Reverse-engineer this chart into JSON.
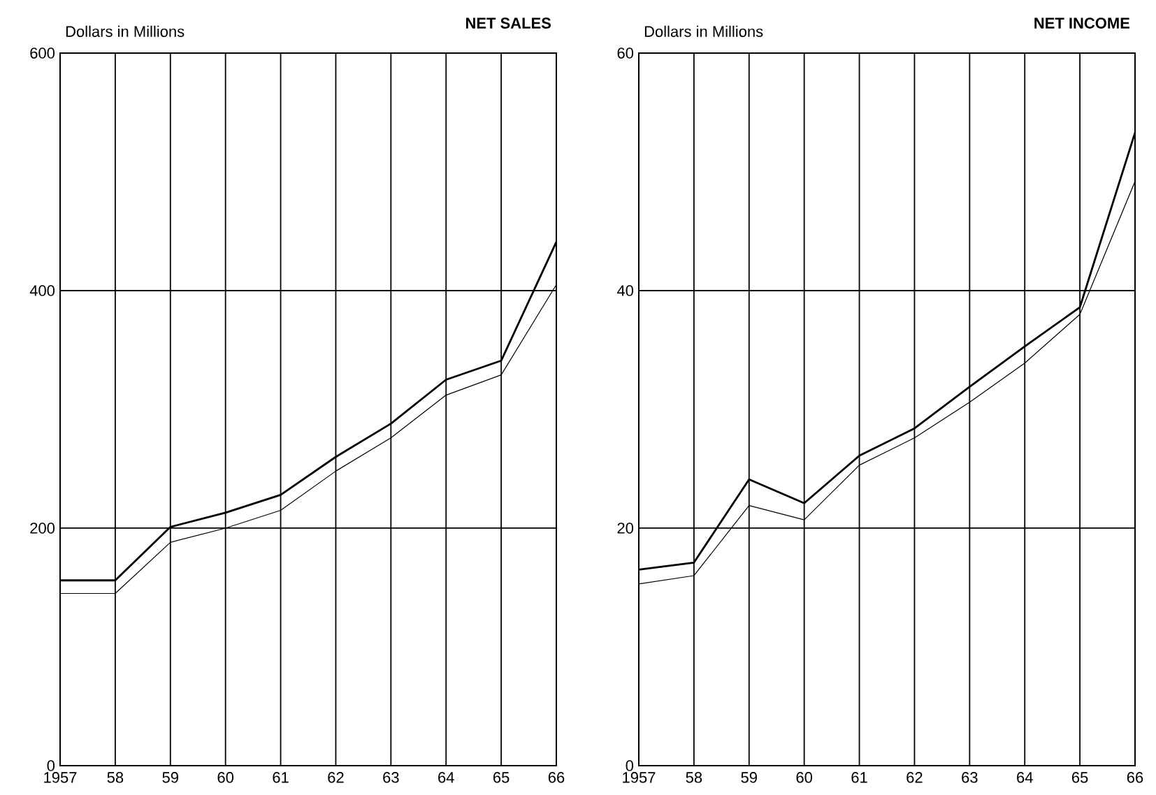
{
  "chart_data": [
    {
      "type": "line",
      "title": "NET SALES",
      "ylabel": "Dollars in Millions",
      "x": [
        1957,
        1958,
        1959,
        1960,
        1961,
        1962,
        1963,
        1964,
        1965,
        1966
      ],
      "xlim": [
        1957,
        1966
      ],
      "xticks": [
        1957,
        {
          "value": 1958,
          "label": "58"
        },
        {
          "value": 1959,
          "label": "59"
        },
        {
          "value": 1960,
          "label": "60"
        },
        {
          "value": 1961,
          "label": "61"
        },
        {
          "value": 1962,
          "label": "62"
        },
        {
          "value": 1963,
          "label": "63"
        },
        {
          "value": 1964,
          "label": "64"
        },
        {
          "value": 1965,
          "label": "65"
        },
        {
          "value": 1966,
          "label": "66"
        }
      ],
      "ylim": [
        0,
        600
      ],
      "yticks": [
        0,
        200,
        400,
        600
      ],
      "grid": true,
      "series": [
        {
          "color": "#000000",
          "values": [
            156,
            156,
            201,
            213,
            228,
            260,
            288,
            325,
            341,
            441
          ]
        },
        {
          "color": "#000000",
          "values": [
            145,
            145,
            188,
            200,
            215,
            248,
            276,
            312,
            329,
            405
          ]
        }
      ]
    },
    {
      "type": "line",
      "title": "NET INCOME",
      "ylabel": "Dollars in Millions",
      "x": [
        1957,
        1958,
        1959,
        1960,
        1961,
        1962,
        1963,
        1964,
        1965,
        1966
      ],
      "xlim": [
        1957,
        1966
      ],
      "xticks": [
        1957,
        {
          "value": 1958,
          "label": "58"
        },
        {
          "value": 1959,
          "label": "59"
        },
        {
          "value": 1960,
          "label": "60"
        },
        {
          "value": 1961,
          "label": "61"
        },
        {
          "value": 1962,
          "label": "62"
        },
        {
          "value": 1963,
          "label": "63"
        },
        {
          "value": 1964,
          "label": "64"
        },
        {
          "value": 1965,
          "label": "65"
        },
        {
          "value": 1966,
          "label": "66"
        }
      ],
      "ylim": [
        0,
        60
      ],
      "yticks": [
        0,
        20,
        40,
        60
      ],
      "grid": true,
      "series": [
        {
          "color": "#000000",
          "values": [
            16.5,
            17.1,
            24.1,
            22.1,
            26.1,
            28.4,
            31.9,
            35.3,
            38.6,
            53.3
          ]
        },
        {
          "color": "#000000",
          "values": [
            15.3,
            16.0,
            21.9,
            20.7,
            25.3,
            27.6,
            30.6,
            33.9,
            38.0,
            49.2
          ]
        }
      ]
    }
  ]
}
